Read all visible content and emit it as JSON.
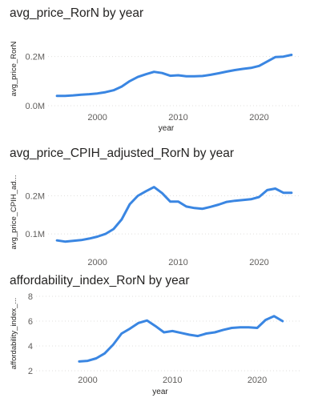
{
  "colors": {
    "line": "#3a86e2",
    "text": "#252423",
    "tick": "#605e5c",
    "grid": "#e1dfdd"
  },
  "charts": [
    {
      "title": "avg_price_RorN by year",
      "chart_data": {
        "type": "line",
        "title": "avg_price_RorN by year",
        "xlabel": "year",
        "ylabel": "avg_price_RorN",
        "xticks": [
          2000,
          2010,
          2020
        ],
        "yticks": [
          0,
          0.2
        ],
        "ytick_labels": [
          "0.0M",
          "0.2M"
        ],
        "xlim": [
          1993.9,
          2025.1
        ],
        "ylim": [
          0,
          0.3
        ],
        "grid": true,
        "x": [
          1995,
          1996,
          1997,
          1998,
          1999,
          2000,
          2001,
          2002,
          2003,
          2004,
          2005,
          2006,
          2007,
          2008,
          2009,
          2010,
          2011,
          2012,
          2013,
          2014,
          2015,
          2016,
          2017,
          2018,
          2019,
          2020,
          2021,
          2022,
          2023,
          2024
        ],
        "y": [
          0.04,
          0.04,
          0.042,
          0.045,
          0.047,
          0.05,
          0.055,
          0.063,
          0.078,
          0.1,
          0.117,
          0.128,
          0.138,
          0.133,
          0.122,
          0.124,
          0.12,
          0.12,
          0.121,
          0.126,
          0.132,
          0.139,
          0.145,
          0.15,
          0.154,
          0.162,
          0.18,
          0.198,
          0.2,
          0.207
        ]
      }
    },
    {
      "title": "avg_price_CPIH_adjusted_RorN by year",
      "chart_data": {
        "type": "line",
        "title": "avg_price_CPIH_adjusted_RorN by year",
        "xlabel": "",
        "ylabel": "avg_price_CPIH_ad...",
        "xticks": [
          2000,
          2010,
          2020
        ],
        "yticks": [
          0.1,
          0.2
        ],
        "ytick_labels": [
          "0.1M",
          "0.2M"
        ],
        "xlim": [
          1993.9,
          2025.1
        ],
        "ylim": [
          0.052,
          0.262
        ],
        "grid": true,
        "x": [
          1995,
          1996,
          1997,
          1998,
          1999,
          2000,
          2001,
          2002,
          2003,
          2004,
          2005,
          2006,
          2007,
          2008,
          2009,
          2010,
          2011,
          2012,
          2013,
          2014,
          2015,
          2016,
          2017,
          2018,
          2019,
          2020,
          2021,
          2022,
          2023,
          2024
        ],
        "y": [
          0.083,
          0.08,
          0.082,
          0.084,
          0.088,
          0.093,
          0.1,
          0.113,
          0.138,
          0.178,
          0.2,
          0.212,
          0.223,
          0.207,
          0.185,
          0.185,
          0.172,
          0.168,
          0.166,
          0.171,
          0.177,
          0.184,
          0.187,
          0.189,
          0.191,
          0.197,
          0.215,
          0.219,
          0.208,
          0.208
        ]
      }
    },
    {
      "title": "affordability_index_RorN by year",
      "chart_data": {
        "type": "line",
        "title": "affordability_index_RorN by year",
        "xlabel": "year",
        "ylabel": "affordability_index_...",
        "xticks": [
          2000,
          2010,
          2020
        ],
        "yticks": [
          2,
          4,
          6,
          8
        ],
        "ytick_labels": [
          "2",
          "4",
          "6",
          "8"
        ],
        "xlim": [
          1993.9,
          2025.1
        ],
        "ylim": [
          2,
          8
        ],
        "grid": true,
        "x": [
          1999,
          2000,
          2001,
          2002,
          2003,
          2004,
          2005,
          2006,
          2007,
          2008,
          2009,
          2010,
          2011,
          2012,
          2013,
          2014,
          2015,
          2016,
          2017,
          2018,
          2019,
          2020,
          2021,
          2022,
          2023
        ],
        "y": [
          2.75,
          2.8,
          3.0,
          3.4,
          4.1,
          5.0,
          5.4,
          5.85,
          6.05,
          5.6,
          5.1,
          5.2,
          5.05,
          4.9,
          4.8,
          5.0,
          5.1,
          5.3,
          5.45,
          5.5,
          5.5,
          5.45,
          6.1,
          6.4,
          6.0
        ]
      }
    }
  ]
}
